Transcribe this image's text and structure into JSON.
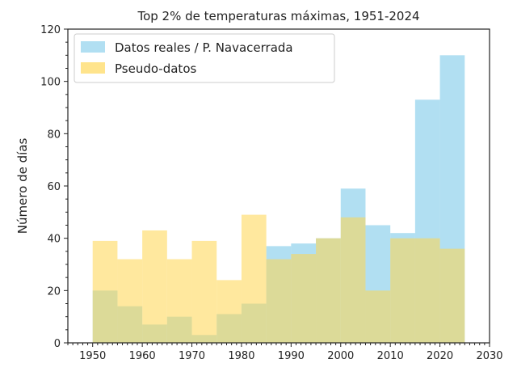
{
  "chart_data": {
    "type": "bar",
    "subtype": "overlapping histogram",
    "title": "Top 2% de temperaturas máximas, 1951-2024",
    "xlabel": "",
    "ylabel": "Número de días",
    "xlim": [
      1945,
      2030
    ],
    "ylim": [
      0,
      120
    ],
    "xticks": [
      "1950",
      "1960",
      "1970",
      "1980",
      "1990",
      "2000",
      "2010",
      "2020",
      "2030"
    ],
    "yticks": [
      "0",
      "20",
      "40",
      "60",
      "80",
      "100",
      "120"
    ],
    "bin_width": 5,
    "bin_starts": [
      1950,
      1955,
      1960,
      1965,
      1970,
      1975,
      1980,
      1985,
      1990,
      1995,
      2000,
      2005,
      2010,
      2015,
      2020
    ],
    "grid": false,
    "legend_position": "top-left",
    "series": [
      {
        "name": "Datos reales / P. Navacerrada",
        "color": "#87CEEB",
        "values": [
          20,
          14,
          7,
          10,
          3,
          11,
          15,
          37,
          38,
          40,
          59,
          45,
          42,
          93,
          110
        ]
      },
      {
        "name": "Pseudo-datos",
        "color": "#FFD54F",
        "values": [
          39,
          32,
          43,
          32,
          39,
          24,
          49,
          32,
          34,
          40,
          48,
          20,
          40,
          40,
          36
        ]
      }
    ]
  }
}
